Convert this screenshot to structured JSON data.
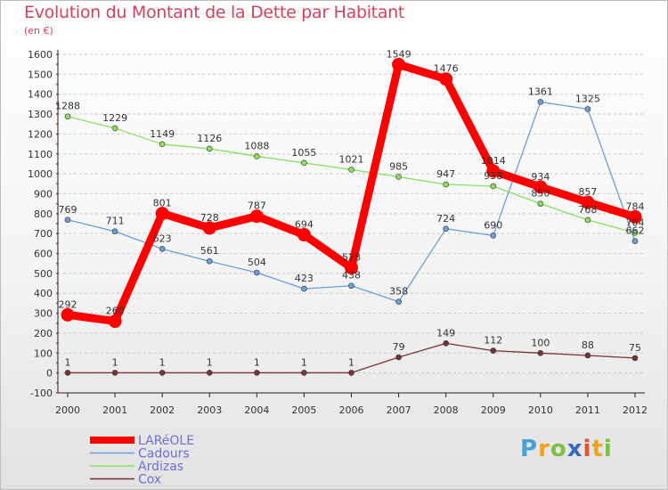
{
  "header": {
    "title": "Evolution du Montant de la Dette par Habitant",
    "unit": "(en €)"
  },
  "logo": {
    "letters": [
      "P",
      "r",
      "o",
      "x",
      "i",
      "t",
      "i"
    ],
    "colors": [
      "#4a9fd8",
      "#f2a31c",
      "#7dc143",
      "#3568b8",
      "#e94f2e",
      "#f2a31c",
      "#7dc143"
    ]
  },
  "chart_data": {
    "type": "line",
    "title": "Evolution du Montant de la Dette par Habitant",
    "ylabel": "(en €)",
    "xlabel": "",
    "x": [
      "2000",
      "2001",
      "2002",
      "2003",
      "2004",
      "2005",
      "2006",
      "2007",
      "2008",
      "2009",
      "2010",
      "2011",
      "2012"
    ],
    "ylim": [
      -100,
      1600
    ],
    "yticks": [
      -100,
      0,
      100,
      200,
      300,
      400,
      500,
      600,
      700,
      800,
      900,
      1000,
      1100,
      1200,
      1300,
      1400,
      1500,
      1600
    ],
    "grid": "horizontal dashed",
    "legend_position": "bottom-left",
    "series": [
      {
        "name": "LARéOLE",
        "color": "#ff0000",
        "values": [
          292,
          260,
          801,
          728,
          787,
          694,
          528,
          1549,
          1476,
          1014,
          934,
          857,
          784
        ],
        "labels": [
          "292",
          "260",
          "801",
          "728",
          "787",
          "694",
          "528",
          "1549",
          "1476",
          "1014",
          "934",
          "857",
          "784"
        ]
      },
      {
        "name": "Cadours",
        "color": "#6a9ed8",
        "values": [
          769,
          711,
          623,
          561,
          504,
          423,
          438,
          358,
          724,
          690,
          1361,
          1325,
          662
        ],
        "labels": [
          "769",
          "711",
          "623",
          "561",
          "504",
          "423",
          "438",
          "358",
          "724",
          "690",
          "1361",
          "1325",
          "662"
        ]
      },
      {
        "name": "Ardizas",
        "color": "#88e060",
        "values": [
          1288,
          1229,
          1149,
          1126,
          1088,
          1055,
          1021,
          985,
          947,
          938,
          850,
          768,
          704
        ],
        "labels": [
          "1288",
          "1229",
          "1149",
          "1126",
          "1088",
          "1055",
          "1021",
          "985",
          "947",
          "938",
          "850",
          "768",
          "704"
        ]
      },
      {
        "name": "Cox",
        "color": "#7a3333",
        "values": [
          1,
          1,
          1,
          1,
          1,
          1,
          1,
          79,
          149,
          112,
          100,
          88,
          75
        ],
        "labels": [
          "1",
          "1",
          "1",
          "1",
          "1",
          "1",
          "1",
          "79",
          "149",
          "112",
          "100",
          "88",
          "75"
        ]
      }
    ]
  }
}
